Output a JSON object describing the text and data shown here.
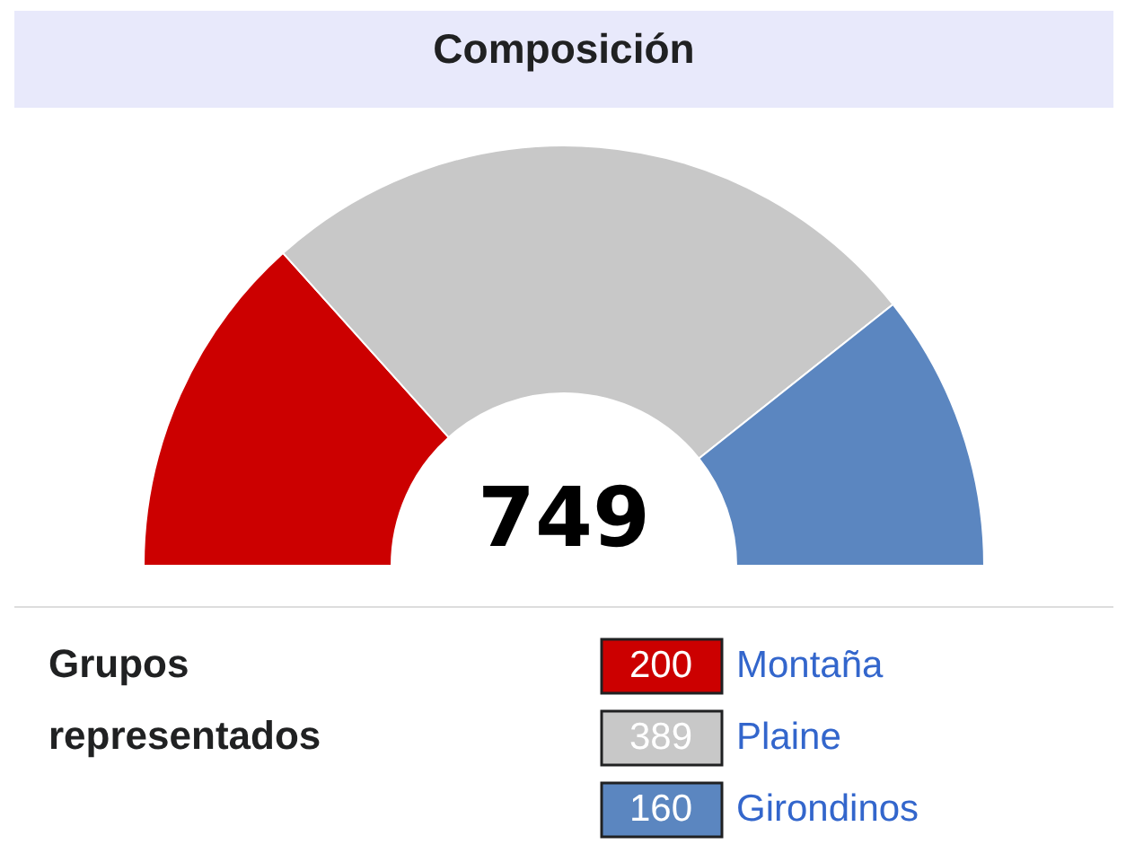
{
  "chart_data": {
    "type": "donut",
    "title": "Composición",
    "legend_title": "Grupos representados",
    "categories": [
      "Montaña",
      "Plaine",
      "Girondinos"
    ],
    "values": [
      200,
      389,
      160
    ],
    "colors": [
      "#cc0000",
      "#c8c8c8",
      "#5b86c0"
    ],
    "data_labels": true,
    "legend": "bottom",
    "annotations": [
      "749"
    ]
  }
}
